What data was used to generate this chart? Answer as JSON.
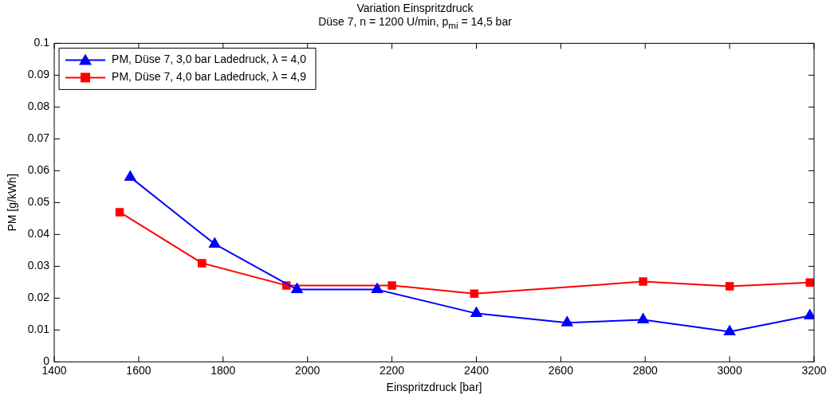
{
  "chart_data": {
    "type": "line",
    "title": "Variation Einspritzdruck",
    "subtitle": "Düse 7, n = 1200 U/min, p$_{mi}$ = 14,5 bar",
    "xlabel": "Einspritzdruck [bar]",
    "ylabel": "PM [g/kWh]",
    "xlim": [
      1400,
      3200
    ],
    "xticks": [
      1400,
      1600,
      1800,
      2000,
      2200,
      2400,
      2600,
      2800,
      3000,
      3200
    ],
    "ylim": [
      0,
      0.1
    ],
    "yticks": [
      0,
      0.01,
      0.02,
      0.03,
      0.04,
      0.05,
      0.06,
      0.07,
      0.08,
      0.09,
      0.1
    ],
    "grid": false,
    "legend": "top left",
    "line_style": "solid",
    "series": [
      {
        "name": "PM, Düse 7, 3,0 bar Ladedruck, λ = 4,0",
        "color": "#0000ff",
        "marker": "triangle",
        "x": [
          1580,
          1780,
          1975,
          2165,
          2400,
          2615,
          2795,
          3000,
          3190
        ],
        "values": [
          0.058,
          0.037,
          0.0227,
          0.0227,
          0.0152,
          0.0123,
          0.0132,
          0.0095,
          0.0145
        ]
      },
      {
        "name": "PM, Düse 7, 4,0 bar Ladedruck, λ = 4,9",
        "color": "#ff0000",
        "marker": "square",
        "x": [
          1555,
          1750,
          1950,
          2200,
          2395,
          2795,
          3000,
          3190
        ],
        "values": [
          0.047,
          0.031,
          0.024,
          0.024,
          0.0214,
          0.0252,
          0.0237,
          0.0249
        ]
      }
    ]
  }
}
